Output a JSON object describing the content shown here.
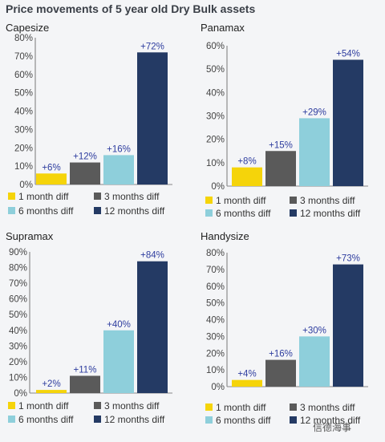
{
  "page": {
    "title": "Price movements of 5 year old Dry Bulk assets",
    "watermark": "信德海事"
  },
  "colors": {
    "series": [
      "#f5d40a",
      "#5a5a5a",
      "#8ecfdb",
      "#243a64"
    ],
    "data_label": "#2e3d9f",
    "axis_text": "#444444",
    "background": "#f4f5f7"
  },
  "chart_data": [
    {
      "type": "bar",
      "title": "Capesize",
      "categories": [
        "1 month diff",
        "3 months diff",
        "6 months diff",
        "12 months diff"
      ],
      "values": [
        6,
        12,
        16,
        72
      ],
      "data_labels": [
        "+6%",
        "+12%",
        "+16%",
        "+72%"
      ],
      "yticks": [
        "0%",
        "10%",
        "20%",
        "30%",
        "40%",
        "50%",
        "60%",
        "70%",
        "80%"
      ],
      "ylim": [
        0,
        80
      ],
      "grid": false,
      "legend": "bottom"
    },
    {
      "type": "bar",
      "title": "Panamax",
      "categories": [
        "1 month diff",
        "3 months diff",
        "6 months diff",
        "12 months diff"
      ],
      "values": [
        8,
        15,
        29,
        54
      ],
      "data_labels": [
        "+8%",
        "+15%",
        "+29%",
        "+54%"
      ],
      "yticks": [
        "0%",
        "10%",
        "20%",
        "30%",
        "40%",
        "50%",
        "60%"
      ],
      "ylim": [
        0,
        60
      ],
      "grid": false,
      "legend": "bottom"
    },
    {
      "type": "bar",
      "title": "Supramax",
      "categories": [
        "1 month diff",
        "3 months diff",
        "6 months diff",
        "12 months diff"
      ],
      "values": [
        2,
        11,
        40,
        84
      ],
      "data_labels": [
        "+2%",
        "+11%",
        "+40%",
        "+84%"
      ],
      "yticks": [
        "0%",
        "10%",
        "20%",
        "30%",
        "40%",
        "50%",
        "60%",
        "70%",
        "80%",
        "90%"
      ],
      "ylim": [
        0,
        90
      ],
      "grid": false,
      "legend": "bottom"
    },
    {
      "type": "bar",
      "title": "Handysize",
      "categories": [
        "1 month diff",
        "3 months diff",
        "6 months diff",
        "12 months diff"
      ],
      "values": [
        4,
        16,
        30,
        73
      ],
      "data_labels": [
        "+4%",
        "+16%",
        "+30%",
        "+73%"
      ],
      "yticks": [
        "0%",
        "10%",
        "20%",
        "30%",
        "40%",
        "50%",
        "60%",
        "70%",
        "80%"
      ],
      "ylim": [
        0,
        80
      ],
      "grid": false,
      "legend": "bottom"
    }
  ]
}
